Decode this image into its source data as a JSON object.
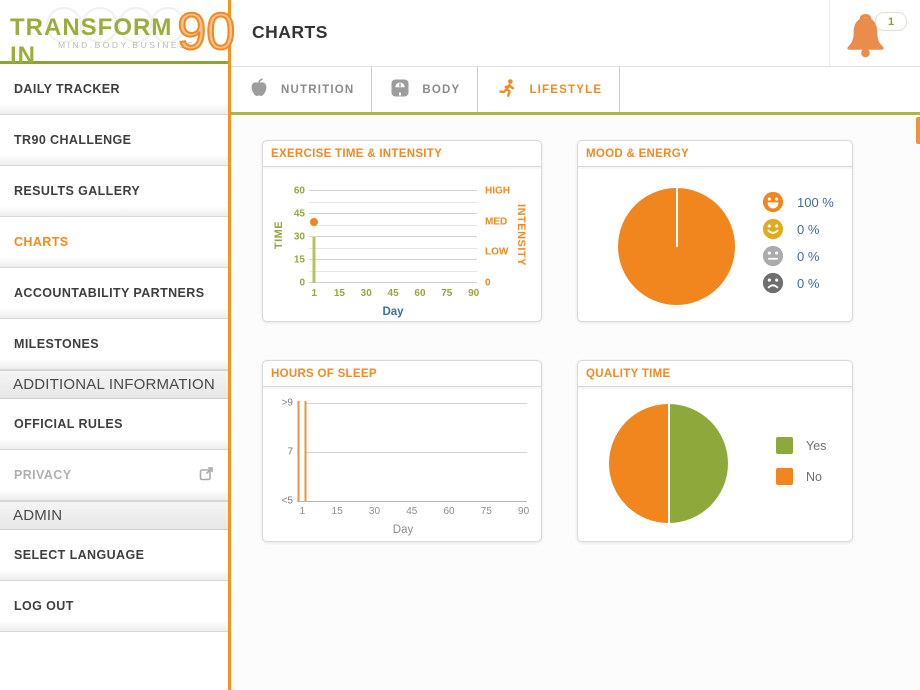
{
  "logo": {
    "title_main": "TRANSFORM IN",
    "title_number": "90",
    "tagline": "MIND.BODY.BUSINESS."
  },
  "header": {
    "title": "CHARTS",
    "notification_count": "1"
  },
  "sidebar": {
    "items": [
      {
        "label": "DAILY TRACKER",
        "type": "item"
      },
      {
        "label": "TR90 CHALLENGE",
        "type": "item"
      },
      {
        "label": "RESULTS GALLERY",
        "type": "item"
      },
      {
        "label": "CHARTS",
        "type": "item",
        "active": true
      },
      {
        "label": "ACCOUNTABILITY PARTNERS",
        "type": "item"
      },
      {
        "label": "MILESTONES",
        "type": "item"
      },
      {
        "label": "ADDITIONAL INFORMATION",
        "type": "section"
      },
      {
        "label": "OFFICIAL RULES",
        "type": "item"
      },
      {
        "label": "PRIVACY",
        "type": "item",
        "muted": true,
        "external": true
      },
      {
        "label": "ADMIN",
        "type": "section"
      },
      {
        "label": "SELECT LANGUAGE",
        "type": "item"
      },
      {
        "label": "LOG OUT",
        "type": "item"
      }
    ]
  },
  "tabs": [
    {
      "label": "NUTRITION",
      "icon": "apple",
      "active": false
    },
    {
      "label": "BODY",
      "icon": "scale",
      "active": false
    },
    {
      "label": "LIFESTYLE",
      "icon": "runner",
      "active": true
    }
  ],
  "colors": {
    "accent_orange": "#f18a21",
    "olive_green": "#a9b93f",
    "pie_green": "#8fa83b",
    "link_blue": "#44689d",
    "sidebar_border_orange": "#f6921e"
  },
  "chart_data": [
    {
      "id": "exercise",
      "type": "bar+scatter",
      "title": "EXERCISE TIME & INTENSITY",
      "xlabel": "Day",
      "xlabel_color": "#3b6fa0",
      "x_ticks": [
        1,
        15,
        30,
        45,
        60,
        75,
        90
      ],
      "x_tick_color": "#97a53f",
      "xlim": [
        1,
        90
      ],
      "grid": true,
      "grid_step": 7.5,
      "left_axis": {
        "label": "TIME",
        "color": "#97a53f",
        "ticks": [
          0,
          15,
          30,
          45,
          60
        ],
        "lim": [
          0,
          60
        ]
      },
      "right_axis": {
        "label": "INTENSITY",
        "color": "#f18a21",
        "ticks": [
          {
            "label": "0",
            "value": 0
          },
          {
            "label": "LOW",
            "value": 20
          },
          {
            "label": "MED",
            "value": 40
          },
          {
            "label": "HIGH",
            "value": 60
          }
        ]
      },
      "series": [
        {
          "name": "time",
          "chart": "bar",
          "color": "#b7c45e",
          "points": [
            {
              "x": 1,
              "y": 30
            }
          ]
        },
        {
          "name": "intensity",
          "chart": "scatter",
          "color": "#f0861d",
          "points": [
            {
              "x": 1,
              "y": 40
            }
          ]
        }
      ]
    },
    {
      "id": "mood",
      "type": "pie",
      "title": "MOOD & ENERGY",
      "legend_position": "right",
      "slices": [
        {
          "label": "very-happy",
          "emoji": "grin",
          "color": "#f0861d",
          "value": 100,
          "display": "100 %"
        },
        {
          "label": "happy",
          "emoji": "smile",
          "color": "#e2ab1d",
          "value": 0,
          "display": "0 %"
        },
        {
          "label": "neutral",
          "emoji": "neutral",
          "color": "#ababab",
          "value": 0,
          "display": "0 %"
        },
        {
          "label": "sad",
          "emoji": "sad",
          "color": "#6e6e6e",
          "value": 0,
          "display": "0 %"
        }
      ]
    },
    {
      "id": "sleep",
      "type": "bar",
      "title": "HOURS OF SLEEP",
      "xlabel": "Day",
      "xlabel_color": "#8c8c8c",
      "x_ticks": [
        1,
        15,
        30,
        45,
        60,
        75,
        90
      ],
      "x_tick_color": "#8c8c8c",
      "xlim": [
        1,
        90
      ],
      "grid": true,
      "y_ticks": [
        ">9",
        "7",
        "<5"
      ],
      "y_tick_color": "#7d7d7d",
      "series": [
        {
          "name": "hours",
          "color": "#f0923d",
          "points": [
            {
              "x": 1,
              "y": ">9"
            }
          ]
        }
      ]
    },
    {
      "id": "quality",
      "type": "pie",
      "title": "QUALITY TIME",
      "legend_position": "right",
      "slices": [
        {
          "label": "Yes",
          "color": "#8fa83b",
          "value": 50
        },
        {
          "label": "No",
          "color": "#f0861d",
          "value": 50
        }
      ]
    }
  ]
}
